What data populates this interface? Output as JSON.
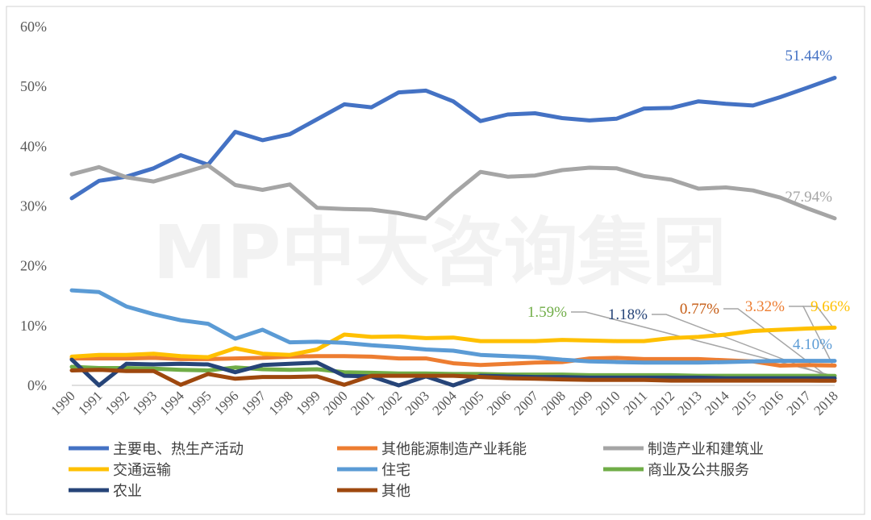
{
  "watermark": "MP中大咨询集团",
  "chart_data": {
    "type": "line",
    "title": "",
    "xlabel": "",
    "ylabel": "",
    "ylim": [
      0,
      60
    ],
    "y_ticks": [
      "0%",
      "10%",
      "20%",
      "30%",
      "40%",
      "50%",
      "60%"
    ],
    "y_tick_values": [
      0,
      10,
      20,
      30,
      40,
      50,
      60
    ],
    "grid": false,
    "legend_position": "bottom",
    "x": [
      "1990",
      "1991",
      "1992",
      "1993",
      "1994",
      "1995",
      "1996",
      "1997",
      "1998",
      "1999",
      "2000",
      "2001",
      "2002",
      "2003",
      "2004",
      "2005",
      "2006",
      "2007",
      "2008",
      "2009",
      "2010",
      "2011",
      "2012",
      "2013",
      "2014",
      "2015",
      "2016",
      "2017",
      "2018"
    ],
    "series": [
      {
        "name": "主要电、热生产活动",
        "color": "#4472C4",
        "values": [
          31.3,
          34.2,
          34.9,
          36.3,
          38.5,
          36.9,
          42.4,
          41.0,
          42.0,
          44.5,
          47.0,
          46.5,
          49.0,
          49.3,
          47.5,
          44.2,
          45.3,
          45.5,
          44.7,
          44.3,
          44.6,
          46.3,
          46.4,
          47.5,
          47.1,
          46.8,
          48.2,
          49.8,
          51.44
        ]
      },
      {
        "name": "其他能源制造产业耗能",
        "color": "#ED7D31",
        "values": [
          4.5,
          4.5,
          4.5,
          4.6,
          4.4,
          4.4,
          4.5,
          4.6,
          4.8,
          4.9,
          4.9,
          4.8,
          4.5,
          4.5,
          3.7,
          3.4,
          3.6,
          3.8,
          3.9,
          4.5,
          4.6,
          4.4,
          4.4,
          4.4,
          4.2,
          4.0,
          3.3,
          3.4,
          3.32
        ]
      },
      {
        "name": "制造产业和建筑业",
        "color": "#A5A5A5",
        "values": [
          35.3,
          36.5,
          34.8,
          34.1,
          35.4,
          36.8,
          33.5,
          32.7,
          33.6,
          29.7,
          29.5,
          29.4,
          28.8,
          27.9,
          32.0,
          35.7,
          34.9,
          35.1,
          36.0,
          36.4,
          36.3,
          35.0,
          34.4,
          32.9,
          33.1,
          32.6,
          31.4,
          29.6,
          27.94
        ]
      },
      {
        "name": "交通运输",
        "color": "#FFC000",
        "values": [
          4.8,
          5.1,
          5.1,
          5.3,
          4.9,
          4.7,
          6.2,
          5.3,
          5.1,
          6.0,
          8.5,
          8.1,
          8.2,
          7.9,
          8.0,
          7.4,
          7.4,
          7.4,
          7.6,
          7.5,
          7.4,
          7.4,
          7.9,
          8.1,
          8.5,
          9.1,
          9.3,
          9.5,
          9.66
        ]
      },
      {
        "name": "住宅",
        "color": "#5B9BD5",
        "values": [
          15.9,
          15.6,
          13.2,
          11.9,
          10.9,
          10.3,
          7.8,
          9.3,
          7.2,
          7.3,
          7.1,
          6.7,
          6.4,
          6.0,
          5.8,
          5.1,
          4.9,
          4.7,
          4.3,
          4.0,
          3.9,
          3.8,
          3.8,
          3.8,
          3.9,
          4.0,
          4.1,
          4.1,
          4.1
        ]
      },
      {
        "name": "商业及公共服务",
        "color": "#70AD47",
        "values": [
          3.1,
          2.9,
          2.9,
          2.8,
          2.6,
          2.5,
          3.0,
          2.7,
          2.6,
          2.7,
          2.2,
          2.1,
          2.0,
          2.0,
          1.9,
          1.9,
          1.8,
          1.8,
          1.8,
          1.7,
          1.7,
          1.7,
          1.7,
          1.6,
          1.6,
          1.6,
          1.6,
          1.6,
          1.59
        ]
      },
      {
        "name": "农业",
        "color": "#264478",
        "values": [
          4.3,
          0.0,
          3.6,
          3.5,
          3.6,
          3.5,
          2.2,
          3.4,
          3.6,
          3.8,
          1.6,
          1.5,
          0.0,
          1.5,
          0.0,
          1.6,
          1.5,
          1.4,
          1.4,
          1.3,
          1.3,
          1.3,
          1.3,
          1.3,
          1.2,
          1.2,
          1.2,
          1.2,
          1.18
        ]
      },
      {
        "name": "其他",
        "color": "#9E480E",
        "values": [
          2.5,
          2.6,
          2.4,
          2.4,
          0.1,
          1.9,
          1.1,
          1.4,
          1.4,
          1.5,
          0.1,
          1.6,
          1.6,
          1.6,
          1.6,
          1.4,
          1.2,
          1.1,
          1.0,
          0.9,
          0.9,
          0.9,
          0.8,
          0.8,
          0.8,
          0.8,
          0.8,
          0.8,
          0.77
        ]
      }
    ],
    "annotations": [
      {
        "text": "51.44%",
        "series": "主要电、热生产活动",
        "color": "#4472C4"
      },
      {
        "text": "27.94%",
        "series": "制造产业和建筑业",
        "color": "#A5A5A5"
      },
      {
        "text": "1.59%",
        "series": "商业及公共服务",
        "color": "#70AD47"
      },
      {
        "text": "1.18%",
        "series": "农业",
        "color": "#264478"
      },
      {
        "text": "0.77%",
        "series": "其他",
        "color": "#C55A11"
      },
      {
        "text": "3.32%",
        "series": "其他能源制造产业耗能",
        "color": "#ED7D31"
      },
      {
        "text": "9.66%",
        "series": "交通运输",
        "color": "#FFC000"
      },
      {
        "text": "4.10%",
        "series": "住宅",
        "color": "#5B9BD5"
      }
    ]
  }
}
